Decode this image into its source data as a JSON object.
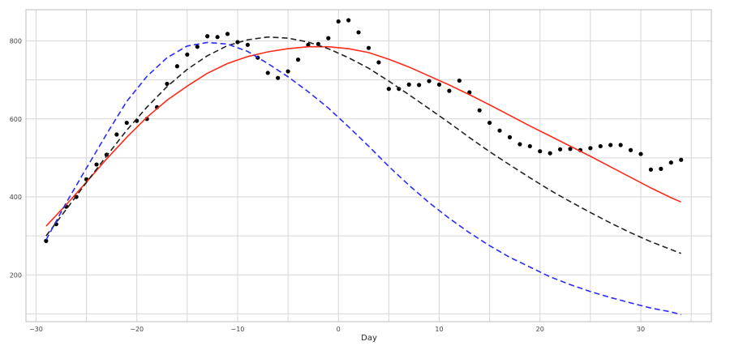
{
  "chart_data": {
    "type": "scatter",
    "title": "",
    "xlabel": "Day",
    "ylabel": "",
    "xlim": [
      -31,
      37
    ],
    "ylim": [
      80,
      880
    ],
    "x_ticks": [
      -30,
      -20,
      -10,
      0,
      10,
      20,
      30
    ],
    "y_ticks": [
      200,
      400,
      600,
      800
    ],
    "grid": true,
    "legend": "none",
    "series": [
      {
        "kind": "scatter",
        "color": "#000000",
        "x": [
          -29,
          -28,
          -27,
          -26,
          -25,
          -24,
          -23,
          -22,
          -21,
          -20,
          -19,
          -18,
          -17,
          -16,
          -15,
          -14,
          -13,
          -12,
          -11,
          -10,
          -9,
          -8,
          -7,
          -6,
          -5,
          -4,
          -3,
          -2,
          -1,
          0,
          1,
          2,
          3,
          4,
          5,
          6,
          7,
          8,
          9,
          10,
          11,
          12,
          13,
          14,
          15,
          16,
          17,
          18,
          19,
          20,
          21,
          22,
          23,
          24,
          25,
          26,
          27,
          28,
          29,
          30,
          31,
          32,
          33,
          34
        ],
        "y": [
          287,
          330,
          375,
          400,
          445,
          483,
          508,
          560,
          590,
          595,
          600,
          630,
          690,
          735,
          765,
          785,
          812,
          810,
          818,
          797,
          790,
          757,
          718,
          705,
          722,
          752,
          790,
          792,
          807,
          850,
          853,
          822,
          782,
          745,
          677,
          677,
          688,
          687,
          697,
          688,
          672,
          698,
          668,
          622,
          590,
          570,
          553,
          535,
          530,
          517,
          512,
          522,
          523,
          520,
          525,
          530,
          533,
          533,
          520,
          510,
          470,
          472,
          488,
          495
        ]
      },
      {
        "kind": "line",
        "color": "#ff2a1a",
        "style": "solid",
        "x": [
          -29,
          -27,
          -25,
          -23,
          -21,
          -19,
          -17,
          -15,
          -13,
          -11,
          -9,
          -7,
          -5,
          -3,
          -1,
          1,
          3,
          5,
          7,
          9,
          11,
          13,
          15,
          17,
          19,
          21,
          23,
          25,
          27,
          29,
          31,
          33,
          34
        ],
        "y": [
          325,
          380,
          438,
          497,
          553,
          604,
          648,
          684,
          717,
          742,
          760,
          772,
          780,
          785,
          785,
          780,
          770,
          753,
          733,
          710,
          687,
          662,
          636,
          609,
          582,
          556,
          530,
          504,
          477,
          450,
          423,
          398,
          387
        ]
      },
      {
        "kind": "line",
        "color": "#222222",
        "style": "dashed",
        "x": [
          -29,
          -27,
          -25,
          -23,
          -21,
          -19,
          -17,
          -15,
          -13,
          -11,
          -9,
          -7,
          -5,
          -3,
          -1,
          1,
          3,
          5,
          7,
          9,
          11,
          13,
          15,
          17,
          19,
          21,
          23,
          25,
          27,
          29,
          31,
          33,
          34
        ],
        "y": [
          300,
          368,
          437,
          505,
          571,
          630,
          683,
          727,
          762,
          788,
          803,
          810,
          807,
          797,
          780,
          757,
          730,
          697,
          662,
          626,
          590,
          552,
          516,
          482,
          449,
          417,
          388,
          360,
          333,
          308,
          285,
          265,
          255
        ]
      },
      {
        "kind": "line",
        "color": "#2a2aff",
        "style": "dashed",
        "x": [
          -29,
          -27,
          -25,
          -23,
          -21,
          -19,
          -17,
          -15,
          -13,
          -11,
          -9,
          -7,
          -5,
          -3,
          -1,
          1,
          3,
          5,
          7,
          9,
          11,
          13,
          15,
          17,
          19,
          21,
          23,
          25,
          27,
          29,
          31,
          33,
          34
        ],
        "y": [
          290,
          385,
          474,
          561,
          645,
          709,
          757,
          787,
          796,
          792,
          773,
          742,
          708,
          670,
          628,
          580,
          530,
          478,
          430,
          385,
          345,
          308,
          275,
          245,
          220,
          195,
          175,
          157,
          142,
          128,
          115,
          105,
          98
        ]
      }
    ]
  }
}
